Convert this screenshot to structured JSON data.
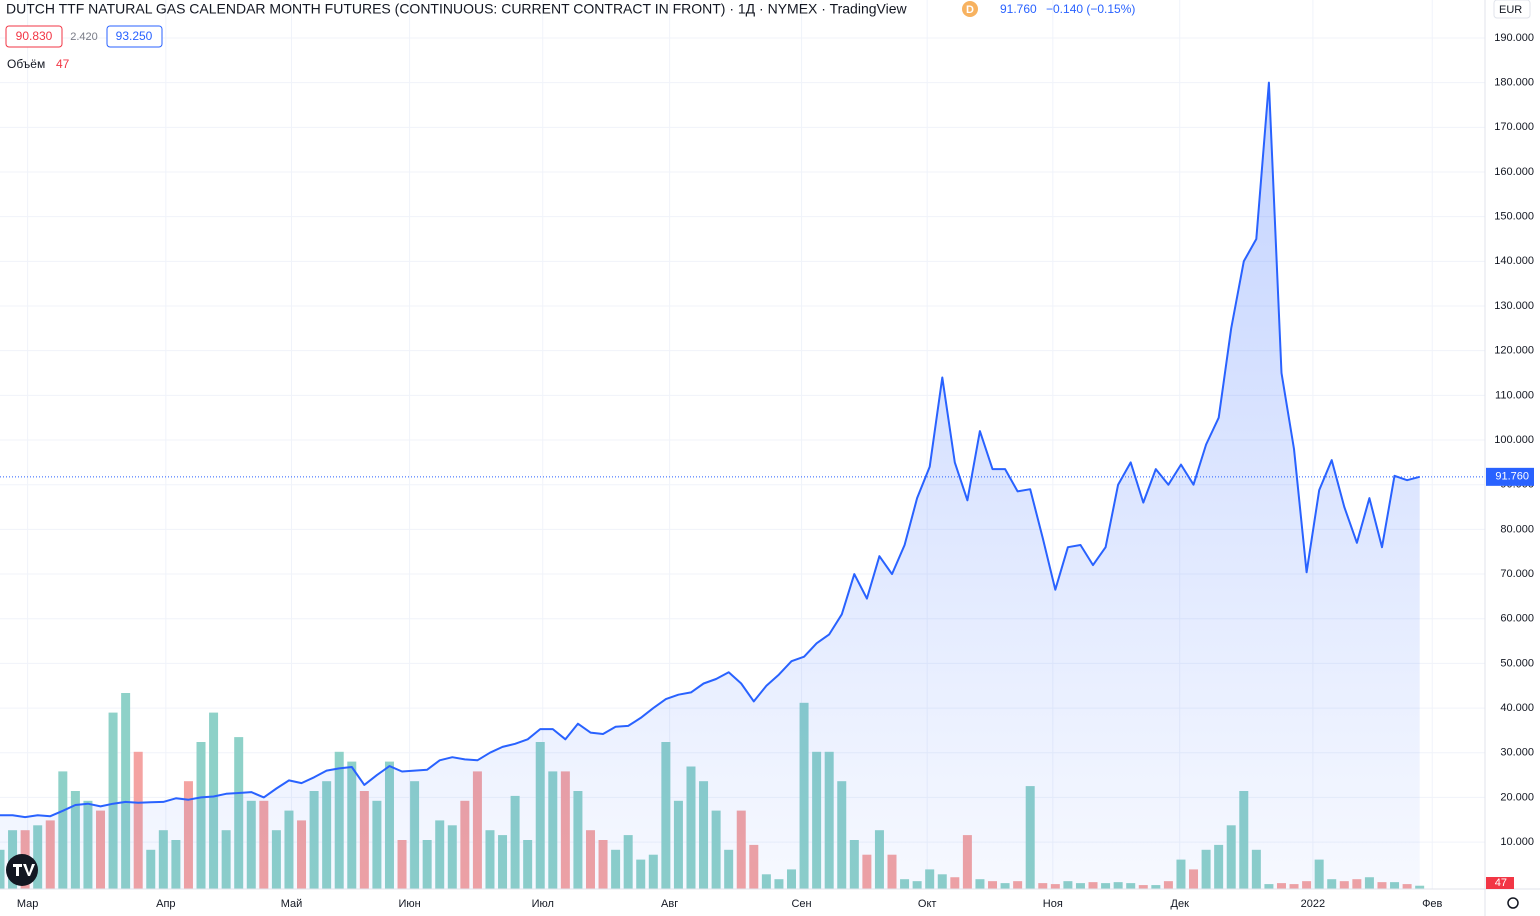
{
  "chart_data": {
    "type": "area",
    "header": {
      "title": "DUTCH TTF NATURAL GAS CALENDAR MONTH FUTURES (CONTINUOUS: CURRENT CONTRACT IN FRONT) · 1Д · NYMEX · TradingView",
      "interval_badge": "D",
      "last": "91.760",
      "change": "−0.140 (−0.15%)",
      "chips": [
        "90.830",
        "2.420",
        "93.250"
      ],
      "currency": "EUR"
    },
    "series": [
      {
        "name": "Price",
        "color": "#2962ff",
        "values": [
          16.0,
          16.0,
          15.6,
          16.0,
          15.8,
          17.0,
          18.3,
          18.6,
          18.0,
          18.6,
          19.0,
          18.8,
          18.9,
          19.0,
          19.8,
          19.5,
          20.0,
          20.2,
          20.8,
          21.0,
          21.2,
          20.0,
          22.0,
          23.8,
          23.2,
          24.5,
          26.0,
          26.5,
          26.8,
          22.8,
          25.0,
          27.0,
          25.8,
          26.0,
          26.2,
          28.3,
          29.0,
          28.5,
          28.3,
          30.0,
          31.3,
          32.0,
          33.0,
          35.3,
          35.3,
          33.0,
          36.5,
          34.5,
          34.2,
          35.8,
          36.0,
          37.8,
          40.0,
          42.0,
          43.0,
          43.5,
          45.5,
          46.5,
          48.0,
          45.5,
          41.5,
          45.0,
          47.5,
          50.5,
          51.5,
          54.5,
          56.5,
          61.0,
          70.0,
          64.5,
          74.0,
          70.0,
          76.5,
          87.0,
          94.0,
          114.0,
          95.0,
          86.5,
          102.0,
          93.5,
          93.5,
          88.5,
          89.0,
          78.0,
          66.5,
          76.0,
          76.5,
          72.0,
          76.0,
          90.0,
          95.0,
          86.0,
          93.5,
          90.0,
          94.5,
          90.0,
          99.0,
          105.0,
          125.0,
          140.0,
          145.0,
          180.0,
          115.0,
          98.0,
          70.4,
          88.8,
          95.5,
          85.0,
          77.0,
          87.0,
          76.0,
          92.0,
          91.0,
          91.76
        ]
      }
    ],
    "volume": {
      "name": "Объём",
      "up_color": "#8ed1c8",
      "down_color": "#f4a3a1",
      "ylim": [
        0,
        12700
      ],
      "values": [
        560,
        840,
        840,
        910,
        980,
        1680,
        1400,
        1260,
        1120,
        2520,
        2800,
        1960,
        560,
        840,
        700,
        1540,
        2100,
        2520,
        840,
        2170,
        1260,
        1260,
        840,
        1120,
        980,
        1400,
        1540,
        1960,
        1820,
        1400,
        1260,
        1820,
        700,
        1540,
        700,
        980,
        910,
        1260,
        1680,
        840,
        770,
        1330,
        700,
        2100,
        1680,
        1680,
        1400,
        840,
        700,
        560,
        770,
        420,
        490,
        2100,
        1260,
        1750,
        1540,
        1120,
        560,
        1120,
        630,
        210,
        140,
        280,
        2660,
        1960,
        1960,
        1540,
        700,
        490,
        840,
        490,
        140,
        112,
        280,
        210,
        168,
        770,
        140,
        112,
        84,
        112,
        1470,
        84,
        70,
        112,
        84,
        98,
        84,
        98,
        84,
        56,
        56,
        112,
        420,
        280,
        560,
        630,
        910,
        1400,
        560,
        70,
        84,
        70,
        112,
        420,
        140,
        112,
        140,
        168,
        98,
        98,
        70,
        47
      ]
    },
    "xlim": [
      0,
      118.2
    ],
    "xticks": [
      {
        "value": 2.2,
        "label": "Мар"
      },
      {
        "value": 13.2,
        "label": "Апр"
      },
      {
        "value": 23.2,
        "label": "Май"
      },
      {
        "value": 32.6,
        "label": "Июн"
      },
      {
        "value": 43.2,
        "label": "Июл"
      },
      {
        "value": 53.3,
        "label": "Авг"
      },
      {
        "value": 63.8,
        "label": "Сен"
      },
      {
        "value": 73.8,
        "label": "Окт"
      },
      {
        "value": 83.8,
        "label": "Ноя"
      },
      {
        "value": 93.9,
        "label": "Дек"
      },
      {
        "value": 104.5,
        "label": "2022"
      },
      {
        "value": 114.0,
        "label": "Фев"
      }
    ],
    "ylim": [
      -0.5,
      198.5
    ],
    "yticks": [
      {
        "value": 10,
        "label": "10.000"
      },
      {
        "value": 20,
        "label": "20.000"
      },
      {
        "value": 30,
        "label": "30.000"
      },
      {
        "value": 40,
        "label": "40.000"
      },
      {
        "value": 50,
        "label": "50.000"
      },
      {
        "value": 60,
        "label": "60.000"
      },
      {
        "value": 70,
        "label": "70.000"
      },
      {
        "value": 80,
        "label": "80.000"
      },
      {
        "value": 90,
        "label": "90.000"
      },
      {
        "value": 100,
        "label": "100.000"
      },
      {
        "value": 110,
        "label": "110.000"
      },
      {
        "value": 120,
        "label": "120.000"
      },
      {
        "value": 130,
        "label": "130.000"
      },
      {
        "value": 140,
        "label": "140.000"
      },
      {
        "value": 150,
        "label": "150.000"
      },
      {
        "value": 160,
        "label": "160.000"
      },
      {
        "value": 170,
        "label": "170.000"
      },
      {
        "value": 180,
        "label": "180.000"
      },
      {
        "value": 190,
        "label": "190.000"
      }
    ],
    "grid": true
  }
}
